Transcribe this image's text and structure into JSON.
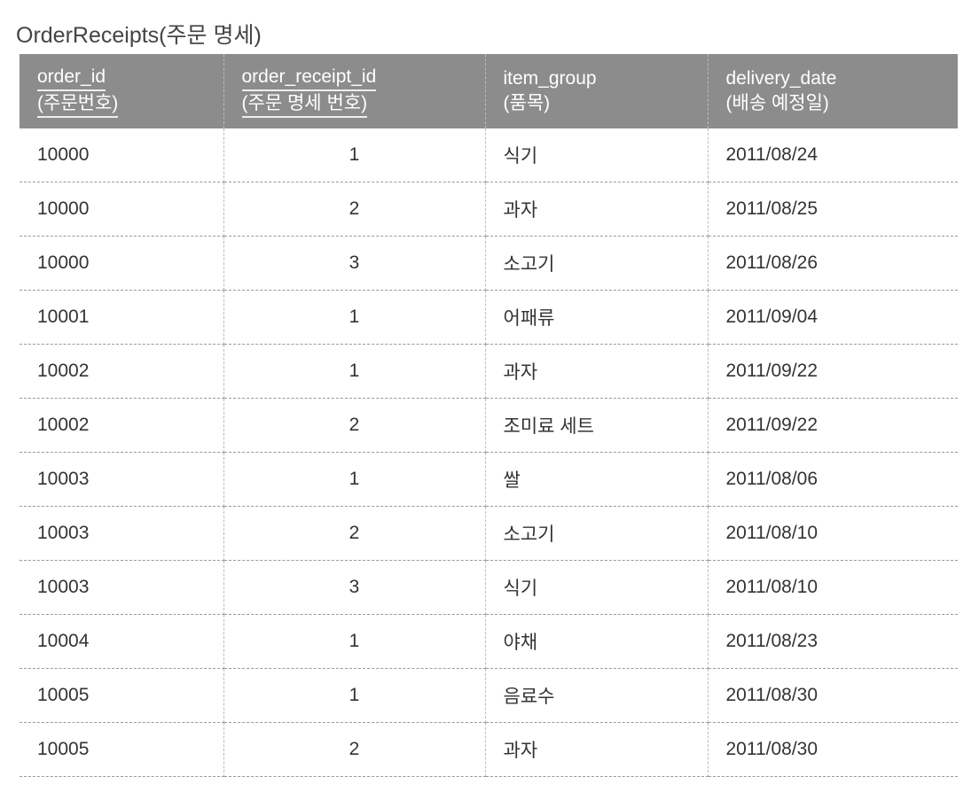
{
  "title": "OrderReceipts(주문 명세)",
  "columns": [
    {
      "name": "order_id",
      "label": "(주문번호)",
      "key": true
    },
    {
      "name": "order_receipt_id",
      "label": "(주문 명세 번호)",
      "key": true
    },
    {
      "name": "item_group",
      "label": "(품목)",
      "key": false
    },
    {
      "name": "delivery_date",
      "label": "(배송 예정일)",
      "key": false
    }
  ],
  "rows": [
    [
      "10000",
      "1",
      "식기",
      "2011/08/24"
    ],
    [
      "10000",
      "2",
      "과자",
      "2011/08/25"
    ],
    [
      "10000",
      "3",
      "소고기",
      "2011/08/26"
    ],
    [
      "10001",
      "1",
      "어패류",
      "2011/09/04"
    ],
    [
      "10002",
      "1",
      "과자",
      "2011/09/22"
    ],
    [
      "10002",
      "2",
      "조미료 세트",
      "2011/09/22"
    ],
    [
      "10003",
      "1",
      "쌀",
      "2011/08/06"
    ],
    [
      "10003",
      "2",
      "소고기",
      "2011/08/10"
    ],
    [
      "10003",
      "3",
      "식기",
      "2011/08/10"
    ],
    [
      "10004",
      "1",
      "야채",
      "2011/08/23"
    ],
    [
      "10005",
      "1",
      "음료수",
      "2011/08/30"
    ],
    [
      "10005",
      "2",
      "과자",
      "2011/08/30"
    ]
  ]
}
